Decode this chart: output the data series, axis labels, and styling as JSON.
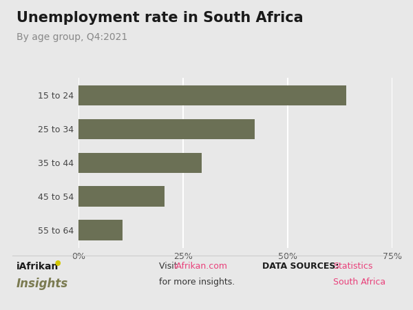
{
  "title": "Unemployment rate in South Africa",
  "subtitle": "By age group, Q4:2021",
  "categories": [
    "55 to 64",
    "45 to 54",
    "35 to 44",
    "25 to 34",
    "15 to 24"
  ],
  "values": [
    10.5,
    20.5,
    29.5,
    42.1,
    63.9
  ],
  "bar_color": "#6b7055",
  "background_color": "#e8e8e8",
  "xlim": [
    0,
    75
  ],
  "xticks": [
    0,
    25,
    50,
    75
  ],
  "xticklabels": [
    "0%",
    "25%",
    "50%",
    "75%"
  ],
  "title_fontsize": 15,
  "subtitle_fontsize": 10,
  "tick_fontsize": 9,
  "link_color": "#e8407a",
  "insights_color": "#7a7a50",
  "grid_color": "#ffffff",
  "separator_color": "#cccccc"
}
